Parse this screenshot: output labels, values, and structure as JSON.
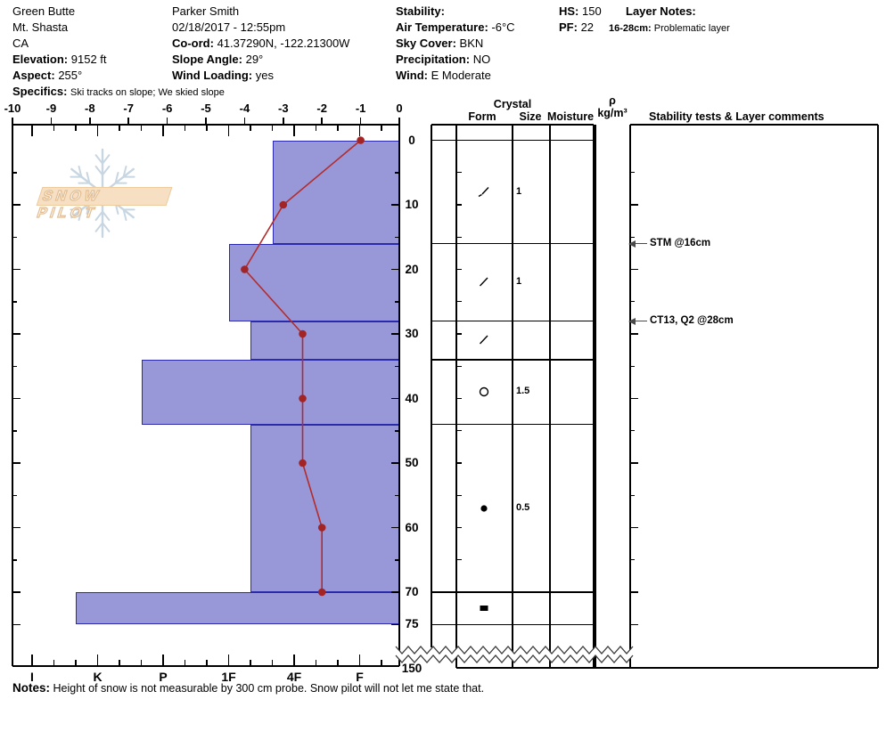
{
  "header": {
    "col1": {
      "lines": [
        "Green Butte",
        "Mt. Shasta",
        "CA"
      ],
      "elevation_label": "Elevation:",
      "elevation_value": "9152 ft",
      "aspect_label": "Aspect:",
      "aspect_value": "255°",
      "specifics_label": "Specifics:",
      "specifics_value": "Ski tracks on slope; We skied slope"
    },
    "col2": {
      "observer": "Parker Smith",
      "datetime": "02/18/2017 - 12:55pm",
      "coord_label": "Co-ord:",
      "coord_value": "41.37290N, -122.21300W",
      "slope_label": "Slope Angle:",
      "slope_value": "29°",
      "wind_loading_label": "Wind Loading:",
      "wind_loading_value": "yes"
    },
    "col3": {
      "stability_label": "Stability:",
      "stability_value": "",
      "air_temp_label": "Air Temperature:",
      "air_temp_value": "-6°C",
      "sky_label": "Sky Cover:",
      "sky_value": "BKN",
      "precip_label": "Precipitation:",
      "precip_value": "NO",
      "wind_label": "Wind:",
      "wind_value": "E Moderate"
    },
    "col4": {
      "hs_label": "HS:",
      "hs_value": "150",
      "pf_label": "PF:",
      "pf_value": "22"
    },
    "col5": {
      "layer_notes_label": "Layer Notes:",
      "note_range": "16-28cm:",
      "note_text": "Problematic layer"
    }
  },
  "logo": {
    "text": "SNOW PILOT"
  },
  "table_headers": {
    "crystal": "Crystal",
    "form": "Form",
    "size": "Size",
    "moisture": "Moisture",
    "rho": "ρ",
    "rho_unit": "kg/m³",
    "stability": "Stability tests & Layer comments"
  },
  "chart_data": {
    "type": "snow-profile",
    "temp_axis": {
      "position": "top",
      "unit": "°C",
      "min": -10,
      "max": 0,
      "ticks": [
        -10,
        -9,
        -8,
        -7,
        -6,
        -5,
        -4,
        -3,
        -2,
        -1,
        0
      ]
    },
    "hardness_axis": {
      "position": "bottom",
      "labels": [
        "I",
        "K",
        "P",
        "1F",
        "4F",
        "F"
      ]
    },
    "depth_axis": {
      "unit": "cm",
      "labels": [
        0,
        10,
        20,
        30,
        40,
        50,
        60,
        70,
        75
      ],
      "break_label": "150",
      "minor_step": 5
    },
    "temperature_profile": [
      {
        "depth_cm": 0,
        "temp_c": -1
      },
      {
        "depth_cm": 10,
        "temp_c": -3
      },
      {
        "depth_cm": 20,
        "temp_c": -4
      },
      {
        "depth_cm": 30,
        "temp_c": -2.5
      },
      {
        "depth_cm": 40,
        "temp_c": -2.5
      },
      {
        "depth_cm": 50,
        "temp_c": -2.5
      },
      {
        "depth_cm": 60,
        "temp_c": -2
      },
      {
        "depth_cm": 70,
        "temp_c": -2
      }
    ],
    "layers": [
      {
        "top_cm": 0,
        "bottom_cm": 16,
        "hardness": "4F+",
        "grain_symbol": "slash-branch",
        "grain_size_mm": "1",
        "moisture": "",
        "density": ""
      },
      {
        "top_cm": 16,
        "bottom_cm": 28,
        "hardness": "1F",
        "grain_symbol": "slash",
        "grain_size_mm": "1",
        "moisture": "",
        "density": ""
      },
      {
        "top_cm": 28,
        "bottom_cm": 34,
        "hardness": "1F-",
        "grain_symbol": "slash",
        "grain_size_mm": "",
        "moisture": "",
        "density": ""
      },
      {
        "top_cm": 34,
        "bottom_cm": 44,
        "hardness": "P+",
        "grain_symbol": "circle-open",
        "grain_size_mm": "1.5",
        "moisture": "",
        "density": ""
      },
      {
        "top_cm": 44,
        "bottom_cm": 70,
        "hardness": "1F-",
        "grain_symbol": "dot-filled",
        "grain_size_mm": "0.5",
        "moisture": "",
        "density": ""
      },
      {
        "top_cm": 70,
        "bottom_cm": 75,
        "hardness": "K+",
        "grain_symbol": "rect-filled",
        "grain_size_mm": "",
        "moisture": "",
        "density": ""
      }
    ],
    "stability_tests": [
      {
        "depth_cm": 16,
        "label": "STM @16cm"
      },
      {
        "depth_cm": 28,
        "label": "CT13, Q2 @28cm"
      }
    ],
    "colors": {
      "bar_fill": "#9898d8",
      "bar_border": "#2a2aaa",
      "temp_line": "#b32b2b",
      "temp_point": "#a32424"
    }
  },
  "notes": {
    "label": "Notes:",
    "text": "Height of snow is not measurable by 300 cm probe.  Snow pilot will not let me state that."
  }
}
